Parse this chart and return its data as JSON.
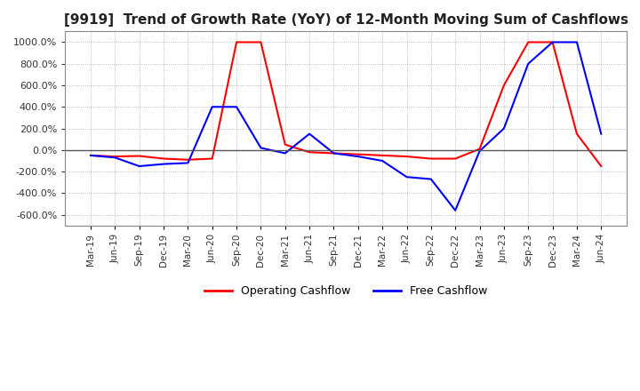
{
  "title": "[9919]  Trend of Growth Rate (YoY) of 12-Month Moving Sum of Cashflows",
  "title_fontsize": 11,
  "ylim": [
    -700,
    1100
  ],
  "yticks": [
    -600,
    -400,
    -200,
    0,
    200,
    400,
    600,
    800,
    1000
  ],
  "background_color": "#ffffff",
  "grid_color": "#aaaaaa",
  "operating_color": "#ff0000",
  "free_color": "#0000ff",
  "legend_labels": [
    "Operating Cashflow",
    "Free Cashflow"
  ],
  "x_labels": [
    "Mar-19",
    "Jun-19",
    "Sep-19",
    "Dec-19",
    "Mar-20",
    "Jun-20",
    "Sep-20",
    "Dec-20",
    "Mar-21",
    "Jun-21",
    "Sep-21",
    "Dec-21",
    "Mar-22",
    "Jun-22",
    "Sep-22",
    "Dec-22",
    "Mar-23",
    "Jun-23",
    "Sep-23",
    "Dec-23",
    "Mar-24",
    "Jun-24"
  ],
  "operating_cashflow": [
    -50,
    -60,
    -55,
    -80,
    -90,
    -80,
    1000,
    1000,
    50,
    -20,
    -30,
    -40,
    -50,
    -60,
    -80,
    -80,
    10,
    600,
    1000,
    1000,
    150,
    -150
  ],
  "free_cashflow": [
    -50,
    -70,
    -150,
    -130,
    -120,
    400,
    400,
    20,
    -30,
    150,
    -30,
    -60,
    -100,
    -250,
    -270,
    -560,
    -10,
    200,
    800,
    1000,
    1000,
    150
  ]
}
